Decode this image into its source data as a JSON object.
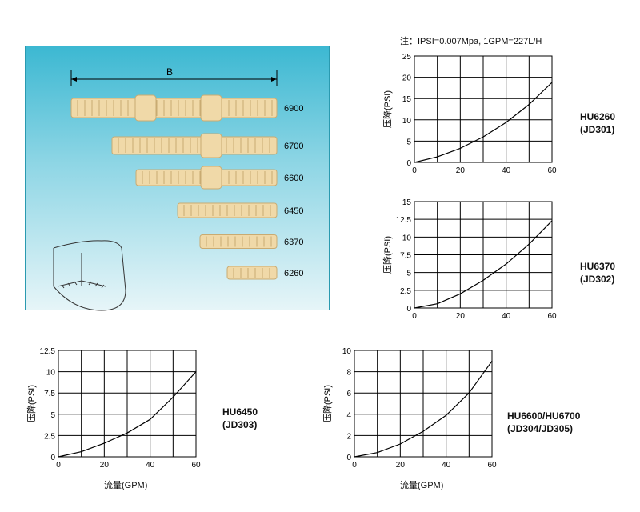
{
  "note": "注：IPSI=0.007Mpa, 1GPM=227L/H",
  "photo": {
    "dimension_label": "B",
    "models": [
      "6900",
      "6700",
      "6600",
      "6450",
      "6370",
      "6260"
    ]
  },
  "colors": {
    "nozzle": "#f0d9a8",
    "nozzle_edge": "#c9ab72",
    "grid": "#000000",
    "curve": "#000000"
  },
  "chart_data": [
    {
      "type": "line",
      "title": "",
      "model": [
        "HU6260",
        "(JD301)"
      ],
      "xlabel": "",
      "ylabel": "压降(PSI)",
      "xlim": [
        0,
        60
      ],
      "ylim": [
        0,
        25
      ],
      "xticks": [
        "0",
        "20",
        "40",
        "60"
      ],
      "yticks": [
        "0",
        "5",
        "10",
        "15",
        "20",
        "25"
      ],
      "x": [
        0,
        10,
        20,
        30,
        40,
        50,
        60
      ],
      "y": [
        0,
        1.3,
        3.3,
        6.0,
        9.4,
        13.6,
        18.8
      ]
    },
    {
      "type": "line",
      "title": "",
      "model": [
        "HU6370",
        "(JD302)"
      ],
      "xlabel": "",
      "ylabel": "压降(PSI)",
      "xlim": [
        0,
        60
      ],
      "ylim": [
        0,
        15
      ],
      "xticks": [
        "0",
        "20",
        "40",
        "60"
      ],
      "yticks": [
        "0",
        "2.5",
        "5",
        "7.5",
        "10",
        "12.5",
        "15"
      ],
      "x": [
        0,
        10,
        20,
        30,
        40,
        50,
        60
      ],
      "y": [
        0,
        0.6,
        2.0,
        3.9,
        6.2,
        9.0,
        12.3
      ]
    },
    {
      "type": "line",
      "title": "",
      "model": [
        "HU6450",
        "(JD303)"
      ],
      "xlabel": "流量(GPM)",
      "ylabel": "压降(PSI)",
      "xlim": [
        0,
        60
      ],
      "ylim": [
        0,
        12.5
      ],
      "xticks": [
        "0",
        "20",
        "40",
        "60"
      ],
      "yticks": [
        "0",
        "2.5",
        "5",
        "7.5",
        "10",
        "12.5"
      ],
      "x": [
        0,
        10,
        20,
        30,
        40,
        50,
        60
      ],
      "y": [
        0,
        0.6,
        1.6,
        2.8,
        4.4,
        7.0,
        10.0
      ]
    },
    {
      "type": "line",
      "title": "",
      "model": [
        "HU6600/HU6700",
        "(JD304/JD305)"
      ],
      "xlabel": "流量(GPM)",
      "ylabel": "压降(PSI)",
      "xlim": [
        0,
        60
      ],
      "ylim": [
        0,
        10
      ],
      "xticks": [
        "0",
        "20",
        "40",
        "60"
      ],
      "yticks": [
        "0",
        "2",
        "4",
        "6",
        "8",
        "10"
      ],
      "x": [
        0,
        10,
        20,
        30,
        40,
        50,
        60
      ],
      "y": [
        0,
        0.4,
        1.2,
        2.4,
        3.9,
        6.0,
        9.0
      ]
    }
  ]
}
